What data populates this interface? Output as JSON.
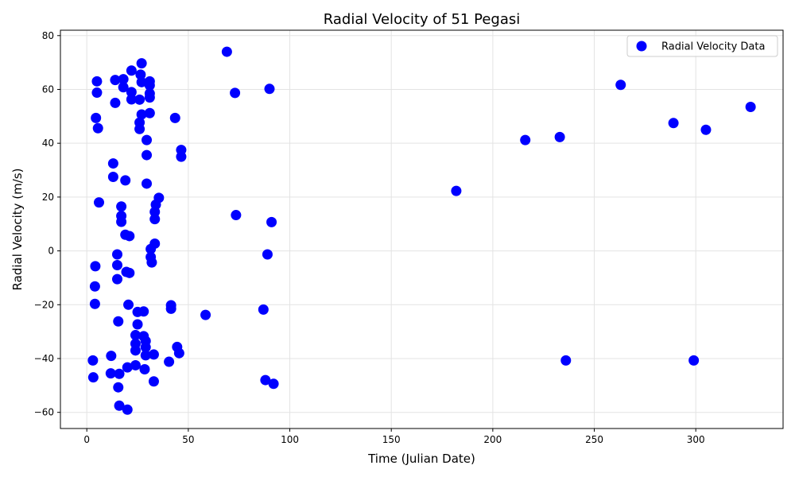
{
  "chart_data": {
    "type": "scatter",
    "title": "Radial Velocity of 51 Pegasi",
    "xlabel": "Time (Julian Date)",
    "ylabel": "Radial Velocity (m/s)",
    "xlim": [
      -13,
      343
    ],
    "ylim": [
      -66,
      82
    ],
    "xticks": [
      0,
      50,
      100,
      150,
      200,
      250,
      300
    ],
    "yticks": [
      -60,
      -40,
      -20,
      0,
      20,
      40,
      60,
      80
    ],
    "grid": true,
    "legend": {
      "position": "top-right"
    },
    "series": [
      {
        "name": "Radial Velocity Data",
        "color": "#0000ff",
        "points": [
          [
            5,
            63
          ],
          [
            5,
            58.8
          ],
          [
            4.5,
            49.4
          ],
          [
            5.5,
            45.6
          ],
          [
            6,
            18
          ],
          [
            4.2,
            -5.7
          ],
          [
            4,
            -13.2
          ],
          [
            4,
            -19.7
          ],
          [
            3,
            -40.7
          ],
          [
            3.2,
            -47
          ],
          [
            12,
            -39
          ],
          [
            11.8,
            -45.5
          ],
          [
            13,
            32.5
          ],
          [
            13,
            27.5
          ],
          [
            14,
            63.5
          ],
          [
            14,
            55
          ],
          [
            15,
            -1.3
          ],
          [
            15,
            -5.3
          ],
          [
            15,
            -10.5
          ],
          [
            15.5,
            -26.2
          ],
          [
            16,
            -45.7
          ],
          [
            15.5,
            -50.7
          ],
          [
            16,
            -57.5
          ],
          [
            17,
            16.5
          ],
          [
            17,
            13
          ],
          [
            17,
            10.8
          ],
          [
            18,
            63.8
          ],
          [
            18,
            60.8
          ],
          [
            19,
            26.2
          ],
          [
            19,
            6
          ],
          [
            19.5,
            -7.8
          ],
          [
            20,
            -43.3
          ],
          [
            20,
            -59
          ],
          [
            20.5,
            -20
          ],
          [
            21,
            -8.2
          ],
          [
            21,
            5.5
          ],
          [
            22,
            67
          ],
          [
            22,
            59
          ],
          [
            22,
            56.3
          ],
          [
            24,
            -31.3
          ],
          [
            24,
            -34.5
          ],
          [
            24,
            -37
          ],
          [
            24,
            -42.5
          ],
          [
            25,
            -27.3
          ],
          [
            25,
            -22.7
          ],
          [
            26,
            56.2
          ],
          [
            26,
            47.7
          ],
          [
            26,
            45.3
          ],
          [
            26.5,
            65.5
          ],
          [
            27,
            69.7
          ],
          [
            27,
            62.7
          ],
          [
            27,
            50.7
          ],
          [
            28,
            -22.5
          ],
          [
            28,
            -31.7
          ],
          [
            29,
            -33.5
          ],
          [
            29,
            -35.8
          ],
          [
            29,
            -38.8
          ],
          [
            28.5,
            -44
          ],
          [
            29.5,
            41.2
          ],
          [
            29.5,
            35.6
          ],
          [
            29.5,
            25
          ],
          [
            31,
            63
          ],
          [
            31,
            61.5
          ],
          [
            31,
            58.5
          ],
          [
            31,
            57
          ],
          [
            31,
            51.2
          ],
          [
            31.5,
            0.7
          ],
          [
            31.5,
            -2.3
          ],
          [
            32,
            -4.3
          ],
          [
            33,
            -38.5
          ],
          [
            33,
            -48.5
          ],
          [
            33.5,
            2.7
          ],
          [
            33.5,
            14.5
          ],
          [
            33.5,
            11.8
          ],
          [
            34,
            17.2
          ],
          [
            35.5,
            19.7
          ],
          [
            40.5,
            -41.2
          ],
          [
            41.5,
            -20.2
          ],
          [
            41.5,
            -21.5
          ],
          [
            43.5,
            49.4
          ],
          [
            44.5,
            -35.7
          ],
          [
            45.5,
            -38
          ],
          [
            46.5,
            37.5
          ],
          [
            46.5,
            35
          ],
          [
            58.5,
            -23.8
          ],
          [
            69,
            74
          ],
          [
            73,
            58.7
          ],
          [
            73.5,
            13.3
          ],
          [
            87,
            -21.8
          ],
          [
            88,
            -48
          ],
          [
            89,
            -1.3
          ],
          [
            90,
            60.2
          ],
          [
            91,
            10.7
          ],
          [
            92,
            -49.4
          ],
          [
            182,
            22.3
          ],
          [
            216,
            41.2
          ],
          [
            233,
            42.3
          ],
          [
            236,
            -40.7
          ],
          [
            263,
            61.7
          ],
          [
            289,
            47.5
          ],
          [
            299,
            -40.7
          ],
          [
            305,
            45
          ],
          [
            327,
            53.5
          ]
        ]
      }
    ]
  }
}
